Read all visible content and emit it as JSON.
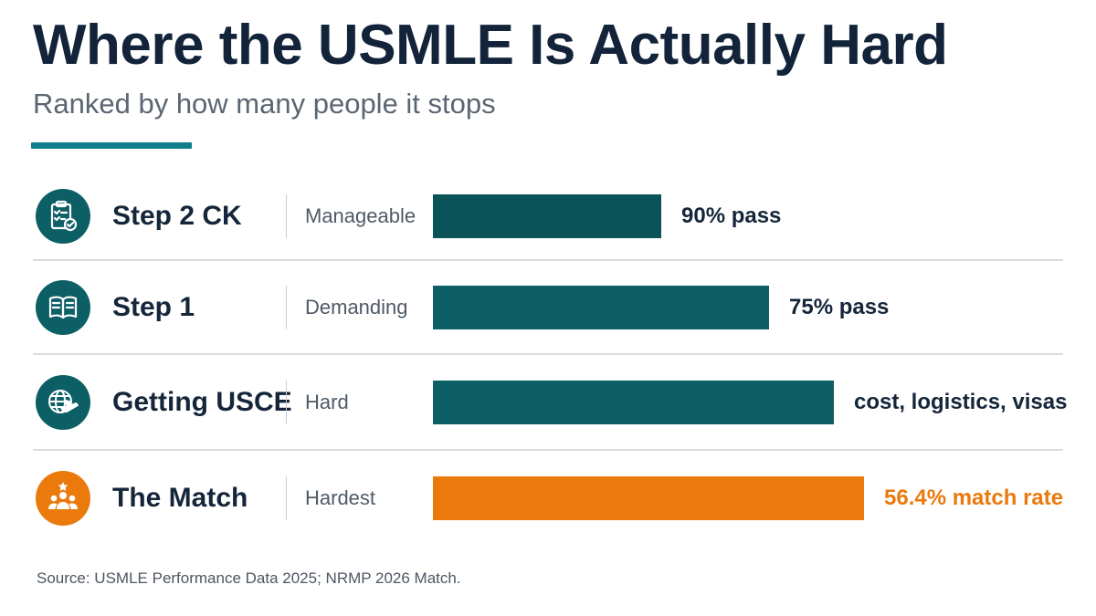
{
  "header": {
    "title": "Where the USMLE Is Actually Hard",
    "subtitle": "Ranked by how many people it stops"
  },
  "colors": {
    "teal": "#0d5f66",
    "teal_dark": "#0a5359",
    "orange": "#ea7a0c",
    "title": "#12233a"
  },
  "chart_data": {
    "type": "bar",
    "orientation": "horizontal",
    "title": "Where the USMLE Is Actually Hard",
    "subtitle": "Ranked by how many people it stops",
    "categories": [
      "Step 2 CK",
      "Step 1",
      "Getting USCE",
      "The Match"
    ],
    "difficulty": [
      "Manageable",
      "Demanding",
      "Hard",
      "Hardest"
    ],
    "value_labels": [
      "90% pass",
      "75% pass",
      "cost, logistics, visas",
      "56.4% match rate"
    ],
    "relative_difficulty": [
      0.53,
      0.78,
      0.93,
      1.0
    ],
    "icons": [
      "clipboard-check-icon",
      "open-book-icon",
      "globe-plane-icon",
      "group-star-icon"
    ],
    "bar_colors": [
      "#0a5359",
      "#0d5f66",
      "#0d5f66",
      "#ea7a0c"
    ],
    "grid": false,
    "legend": "none"
  },
  "footer": {
    "source": "Source: USMLE Performance Data 2025; NRMP 2026 Match."
  }
}
